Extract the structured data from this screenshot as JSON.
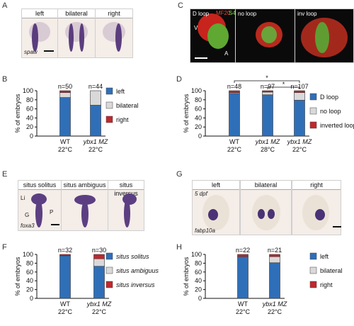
{
  "panels": {
    "A": {
      "label": "A",
      "captions": [
        "left",
        "bilateral",
        "right"
      ],
      "gene": "spaw"
    },
    "C": {
      "label": "C",
      "captions": [
        "D loop",
        "no loop",
        "inv loop"
      ],
      "stain1": "MF20",
      "stain2": "S46",
      "v": "V",
      "a": "A"
    },
    "E": {
      "label": "E",
      "captions": [
        "situs solitus",
        "situs ambiguus",
        "situs inversus"
      ],
      "gene": "foxa3",
      "li": "Li",
      "g": "G",
      "p": "P"
    },
    "G": {
      "label": "G",
      "captions": [
        "left",
        "bilateral",
        "right"
      ],
      "stage": "5 dpf",
      "gene": "fabp10a"
    }
  },
  "colors": {
    "blue": "#2f6fb8",
    "grey": "#d9d9d9",
    "red": "#c0282d"
  },
  "chart_data": [
    {
      "id": "B",
      "type": "bar",
      "stacked": true,
      "ylabel": "% of embryos",
      "ylim": [
        0,
        100
      ],
      "yticks": [
        0,
        20,
        40,
        60,
        80,
        100
      ],
      "categories": [
        {
          "line1": "WT",
          "line2": "22°C",
          "n": "n=50"
        },
        {
          "line1": "ybx1 MZ",
          "line2": "22°C",
          "n": "n=44"
        }
      ],
      "series": [
        {
          "name": "left",
          "color": "#2f6fb8",
          "values": [
            85,
            68
          ]
        },
        {
          "name": "bilateral",
          "color": "#d9d9d9",
          "values": [
            11,
            32
          ]
        },
        {
          "name": "right",
          "color": "#c0282d",
          "values": [
            4,
            0
          ]
        }
      ]
    },
    {
      "id": "D",
      "type": "bar",
      "stacked": true,
      "ylabel": "% of embryos",
      "ylim": [
        0,
        100
      ],
      "yticks": [
        0,
        20,
        40,
        60,
        80,
        100
      ],
      "categories": [
        {
          "line1": "WT",
          "line2": "22°C",
          "n": "n=48"
        },
        {
          "line1": "ybx1 MZ",
          "line2": "28°C",
          "n": "n=97"
        },
        {
          "line1": "ybx1 MZ",
          "line2": "22°C",
          "n": "n=107"
        }
      ],
      "series": [
        {
          "name": "D loop",
          "color": "#2f6fb8",
          "values": [
            94,
            91,
            79
          ]
        },
        {
          "name": "no loop",
          "color": "#d9d9d9",
          "values": [
            2,
            6,
            17
          ]
        },
        {
          "name": "inverted loop",
          "color": "#c0282d",
          "values": [
            4,
            3,
            4
          ]
        }
      ],
      "significance": [
        "*",
        "*"
      ]
    },
    {
      "id": "F",
      "type": "bar",
      "stacked": true,
      "ylabel": "% of embryos",
      "ylim": [
        0,
        100
      ],
      "yticks": [
        0,
        20,
        40,
        60,
        80,
        100
      ],
      "categories": [
        {
          "line1": "WT",
          "line2": "22°C",
          "n": "n=32"
        },
        {
          "line1": "ybx1 MZ",
          "line2": "22°C",
          "n": "n=30"
        }
      ],
      "series": [
        {
          "name": "situs solitus",
          "color": "#2f6fb8",
          "values": [
            97,
            73
          ]
        },
        {
          "name": "situs ambiguus",
          "color": "#d9d9d9",
          "values": [
            0,
            17
          ]
        },
        {
          "name": "situs inversus",
          "color": "#c0282d",
          "values": [
            3,
            10
          ]
        }
      ]
    },
    {
      "id": "H",
      "type": "bar",
      "stacked": true,
      "ylabel": "% of embryos",
      "ylim": [
        0,
        100
      ],
      "yticks": [
        0,
        20,
        40,
        60,
        80,
        100
      ],
      "categories": [
        {
          "line1": "WT",
          "line2": "22°C",
          "n": "n=22"
        },
        {
          "line1": "ybx1 MZ",
          "line2": "22°C",
          "n": "n=21"
        }
      ],
      "series": [
        {
          "name": "left",
          "color": "#2f6fb8",
          "values": [
            95,
            81
          ]
        },
        {
          "name": "bilateral",
          "color": "#d9d9d9",
          "values": [
            0,
            14
          ]
        },
        {
          "name": "right",
          "color": "#c0282d",
          "values": [
            5,
            5
          ]
        }
      ]
    }
  ]
}
